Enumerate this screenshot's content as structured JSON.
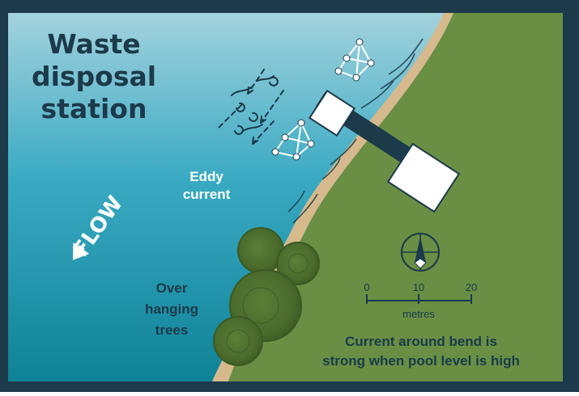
{
  "title": {
    "line1": "Waste",
    "line2": "disposal",
    "line3": "station"
  },
  "labels": {
    "eddy_line1": "Eddy",
    "eddy_line2": "current",
    "flow": "FLOW",
    "trees_line1": "Over",
    "trees_line2": "hanging",
    "trees_line3": "trees"
  },
  "scale_bar": {
    "ticks": [
      "0",
      "10",
      "20"
    ],
    "unit": "metres"
  },
  "compass": {
    "direction": "north"
  },
  "note": {
    "line1": "Current around bend is",
    "line2": "strong when pool level is high"
  },
  "colors": {
    "frame": "#1c3a4a",
    "water_light": "#9ccdd9",
    "water_mid": "#3aaac3",
    "water_deep": "#12889e",
    "land": "#6a8e44",
    "sand": "#d9bc8f",
    "trees": "#4a6d2f",
    "structure": "#ffffff"
  },
  "icons": [
    "compass-icon",
    "flow-arrow-icon",
    "floating-buoy-icon",
    "eddy-swirl-icon",
    "pier-icon",
    "tree-canopy-icon"
  ]
}
